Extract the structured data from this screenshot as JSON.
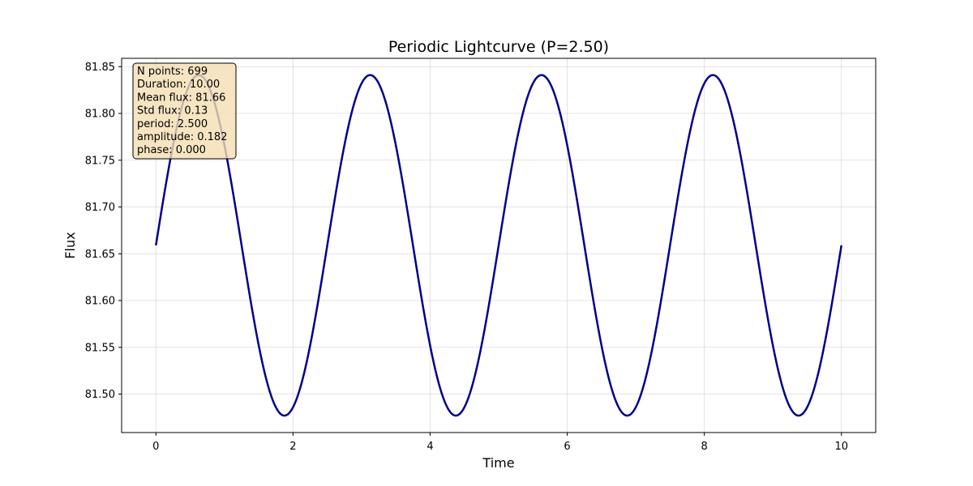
{
  "chart_data": {
    "type": "line",
    "title": "Periodic Lightcurve (P=2.50)",
    "xlabel": "Time",
    "ylabel": "Flux",
    "xlim": [
      -0.5,
      10.5
    ],
    "ylim": [
      81.4589,
      81.8589
    ],
    "x_ticks": [
      "0",
      "2",
      "4",
      "6",
      "8",
      "10"
    ],
    "y_ticks": [
      "81.50",
      "81.55",
      "81.60",
      "81.65",
      "81.70",
      "81.75",
      "81.80",
      "81.85"
    ],
    "grid": true,
    "series": [
      {
        "color": "#00008b",
        "model": {
          "mean": 81.659,
          "amplitude": 0.182,
          "period": 2.5,
          "phase": 0.0,
          "t_start": 0.0,
          "t_end": 10.0,
          "n_points": 699
        }
      }
    ],
    "stats_box": {
      "lines": [
        "N points: 699",
        "Duration: 10.00",
        "Mean flux: 81.66",
        "Std flux: 0.13",
        "period: 2.500",
        "amplitude: 0.182",
        "phase: 0.000"
      ],
      "background": "#f5deb3",
      "position": "top-left"
    }
  }
}
